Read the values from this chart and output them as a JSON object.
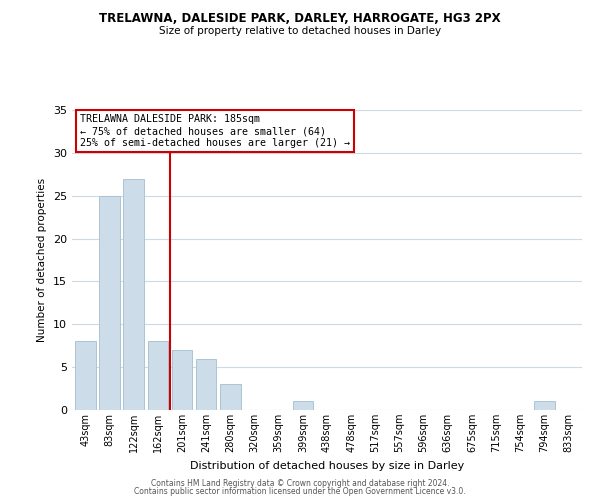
{
  "title": "TRELAWNA, DALESIDE PARK, DARLEY, HARROGATE, HG3 2PX",
  "subtitle": "Size of property relative to detached houses in Darley",
  "xlabel": "Distribution of detached houses by size in Darley",
  "ylabel": "Number of detached properties",
  "categories": [
    "43sqm",
    "83sqm",
    "122sqm",
    "162sqm",
    "201sqm",
    "241sqm",
    "280sqm",
    "320sqm",
    "359sqm",
    "399sqm",
    "438sqm",
    "478sqm",
    "517sqm",
    "557sqm",
    "596sqm",
    "636sqm",
    "675sqm",
    "715sqm",
    "754sqm",
    "794sqm",
    "833sqm"
  ],
  "values": [
    8,
    25,
    27,
    8,
    7,
    6,
    3,
    0,
    0,
    1,
    0,
    0,
    0,
    0,
    0,
    0,
    0,
    0,
    0,
    1,
    0
  ],
  "bar_color": "#ccdce8",
  "bar_edgecolor": "#adc4d6",
  "ylim": [
    0,
    35
  ],
  "yticks": [
    0,
    5,
    10,
    15,
    20,
    25,
    30,
    35
  ],
  "annotation_box_text": "TRELAWNA DALESIDE PARK: 185sqm\n← 75% of detached houses are smaller (64)\n25% of semi-detached houses are larger (21) →",
  "vline_x_index": 3.5,
  "vline_color": "#cc0000",
  "footer_line1": "Contains HM Land Registry data © Crown copyright and database right 2024.",
  "footer_line2": "Contains public sector information licensed under the Open Government Licence v3.0.",
  "background_color": "#ffffff",
  "grid_color": "#ccdaE6"
}
